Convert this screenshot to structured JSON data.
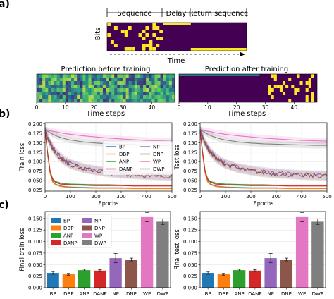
{
  "panel_labels": [
    "a)",
    "b)",
    "c)"
  ],
  "task": {
    "segments": [
      "Sequence",
      "Delay",
      "Return sequence"
    ],
    "ylabel": "Bits",
    "xlabel": "Time",
    "pred_before_title": "Prediction before training",
    "pred_after_title": "Prediction after training",
    "time_xlabel": "Time steps",
    "time_ticks": [
      0,
      10,
      20,
      30,
      40
    ]
  },
  "colors": {
    "BP": "#1f77b4",
    "DBP": "#ff7f0e",
    "ANP": "#2ca02c",
    "DANP": "#d62728",
    "NP": "#9467bd",
    "DNP": "#8c564b",
    "WP": "#e377c2",
    "DWP": "#7f7f7f",
    "heatmap_bg": "#440154",
    "heatmap_on": "#fde725"
  },
  "chart_data": [
    {
      "type": "line",
      "panel": "b-train",
      "xlabel": "Epochs",
      "ylabel": "Train loss",
      "xlim": [
        0,
        500
      ],
      "ylim": [
        0.0225,
        0.2025
      ],
      "xticks": [
        0,
        100,
        200,
        300,
        400,
        500
      ],
      "yticks": [
        "0.025",
        "0.050",
        "0.075",
        "0.100",
        "0.125",
        "0.150",
        "0.175",
        "0.200"
      ],
      "legend": "top-right",
      "x": [
        0,
        10,
        20,
        30,
        40,
        60,
        80,
        100,
        150,
        200,
        250,
        300,
        350,
        400,
        450,
        500
      ],
      "series": [
        {
          "name": "BP",
          "values": [
            0.182,
            0.12,
            0.07,
            0.048,
            0.041,
            0.036,
            0.034,
            0.033,
            0.032,
            0.031,
            0.031,
            0.031,
            0.03,
            0.03,
            0.03,
            0.03
          ]
        },
        {
          "name": "DBP",
          "values": [
            0.182,
            0.118,
            0.068,
            0.046,
            0.04,
            0.035,
            0.033,
            0.032,
            0.031,
            0.03,
            0.03,
            0.03,
            0.029,
            0.029,
            0.029,
            0.029
          ]
        },
        {
          "name": "ANP",
          "values": [
            0.182,
            0.125,
            0.075,
            0.055,
            0.048,
            0.044,
            0.042,
            0.041,
            0.04,
            0.039,
            0.039,
            0.038,
            0.038,
            0.038,
            0.038,
            0.038
          ]
        },
        {
          "name": "DANP",
          "values": [
            0.182,
            0.123,
            0.073,
            0.053,
            0.046,
            0.041,
            0.04,
            0.039,
            0.038,
            0.037,
            0.037,
            0.037,
            0.036,
            0.036,
            0.036,
            0.036
          ]
        },
        {
          "name": "NP",
          "values": [
            0.182,
            0.165,
            0.15,
            0.138,
            0.128,
            0.113,
            0.102,
            0.095,
            0.084,
            0.078,
            0.074,
            0.07,
            0.068,
            0.066,
            0.065,
            0.064
          ]
        },
        {
          "name": "DNP",
          "values": [
            0.182,
            0.163,
            0.148,
            0.135,
            0.125,
            0.11,
            0.1,
            0.093,
            0.082,
            0.076,
            0.071,
            0.068,
            0.066,
            0.064,
            0.063,
            0.062
          ]
        },
        {
          "name": "WP",
          "values": [
            0.185,
            0.183,
            0.181,
            0.18,
            0.179,
            0.176,
            0.174,
            0.172,
            0.168,
            0.165,
            0.162,
            0.16,
            0.158,
            0.156,
            0.155,
            0.154
          ]
        },
        {
          "name": "DWP",
          "values": [
            0.185,
            0.18,
            0.176,
            0.172,
            0.169,
            0.164,
            0.16,
            0.157,
            0.152,
            0.149,
            0.147,
            0.146,
            0.145,
            0.144,
            0.143,
            0.143
          ]
        }
      ]
    },
    {
      "type": "line",
      "panel": "b-test",
      "xlabel": "Epochs",
      "ylabel": "Test loss",
      "xlim": [
        0,
        500
      ],
      "ylim": [
        0.0225,
        0.2025
      ],
      "xticks": [
        0,
        100,
        200,
        300,
        400,
        500
      ],
      "yticks": [
        "0.025",
        "0.050",
        "0.075",
        "0.100",
        "0.125",
        "0.150",
        "0.175",
        "0.200"
      ],
      "x": [
        0,
        10,
        20,
        30,
        40,
        60,
        80,
        100,
        150,
        200,
        250,
        300,
        350,
        400,
        450,
        500
      ],
      "series": [
        {
          "name": "BP",
          "values": [
            0.182,
            0.12,
            0.07,
            0.048,
            0.041,
            0.036,
            0.034,
            0.033,
            0.032,
            0.031,
            0.031,
            0.031,
            0.03,
            0.03,
            0.03,
            0.03
          ]
        },
        {
          "name": "DBP",
          "values": [
            0.182,
            0.118,
            0.068,
            0.046,
            0.04,
            0.035,
            0.033,
            0.032,
            0.031,
            0.03,
            0.03,
            0.03,
            0.029,
            0.029,
            0.029,
            0.029
          ]
        },
        {
          "name": "ANP",
          "values": [
            0.182,
            0.125,
            0.075,
            0.055,
            0.048,
            0.044,
            0.042,
            0.041,
            0.04,
            0.039,
            0.039,
            0.038,
            0.038,
            0.038,
            0.038,
            0.038
          ]
        },
        {
          "name": "DANP",
          "values": [
            0.182,
            0.123,
            0.073,
            0.053,
            0.046,
            0.041,
            0.04,
            0.039,
            0.038,
            0.037,
            0.037,
            0.037,
            0.036,
            0.036,
            0.036,
            0.036
          ]
        },
        {
          "name": "NP",
          "values": [
            0.182,
            0.165,
            0.15,
            0.138,
            0.128,
            0.113,
            0.102,
            0.095,
            0.084,
            0.078,
            0.074,
            0.07,
            0.068,
            0.066,
            0.065,
            0.064
          ]
        },
        {
          "name": "DNP",
          "values": [
            0.182,
            0.163,
            0.148,
            0.135,
            0.125,
            0.11,
            0.1,
            0.093,
            0.082,
            0.076,
            0.071,
            0.068,
            0.066,
            0.064,
            0.063,
            0.062
          ]
        },
        {
          "name": "WP",
          "values": [
            0.185,
            0.183,
            0.181,
            0.18,
            0.179,
            0.176,
            0.174,
            0.172,
            0.168,
            0.165,
            0.162,
            0.16,
            0.158,
            0.156,
            0.155,
            0.154
          ]
        },
        {
          "name": "DWP",
          "values": [
            0.185,
            0.18,
            0.176,
            0.172,
            0.169,
            0.164,
            0.16,
            0.157,
            0.152,
            0.149,
            0.147,
            0.146,
            0.145,
            0.144,
            0.143,
            0.143
          ]
        }
      ]
    },
    {
      "type": "bar",
      "panel": "c-train",
      "ylabel": "Final train loss",
      "categories": [
        "BP",
        "DBP",
        "ANP",
        "DANP",
        "NP",
        "DNP",
        "WP",
        "DWP"
      ],
      "values": [
        0.032,
        0.029,
        0.038,
        0.037,
        0.064,
        0.061,
        0.153,
        0.143
      ],
      "errors": [
        0.003,
        0.002,
        0.002,
        0.002,
        0.01,
        0.003,
        0.01,
        0.006
      ],
      "ylim": [
        0,
        0.165
      ],
      "yticks": [
        "0.000",
        "0.025",
        "0.050",
        "0.075",
        "0.100",
        "0.125",
        "0.150"
      ],
      "legend": "top-left"
    },
    {
      "type": "bar",
      "panel": "c-test",
      "ylabel": "Final test loss",
      "categories": [
        "BP",
        "DBP",
        "ANP",
        "DANP",
        "NP",
        "DNP",
        "WP",
        "DWP"
      ],
      "values": [
        0.032,
        0.029,
        0.038,
        0.037,
        0.064,
        0.061,
        0.153,
        0.143
      ],
      "errors": [
        0.003,
        0.002,
        0.002,
        0.002,
        0.01,
        0.003,
        0.01,
        0.006
      ],
      "ylim": [
        0,
        0.165
      ],
      "yticks": [
        "0.000",
        "0.025",
        "0.050",
        "0.075",
        "0.100",
        "0.125",
        "0.150"
      ]
    }
  ]
}
